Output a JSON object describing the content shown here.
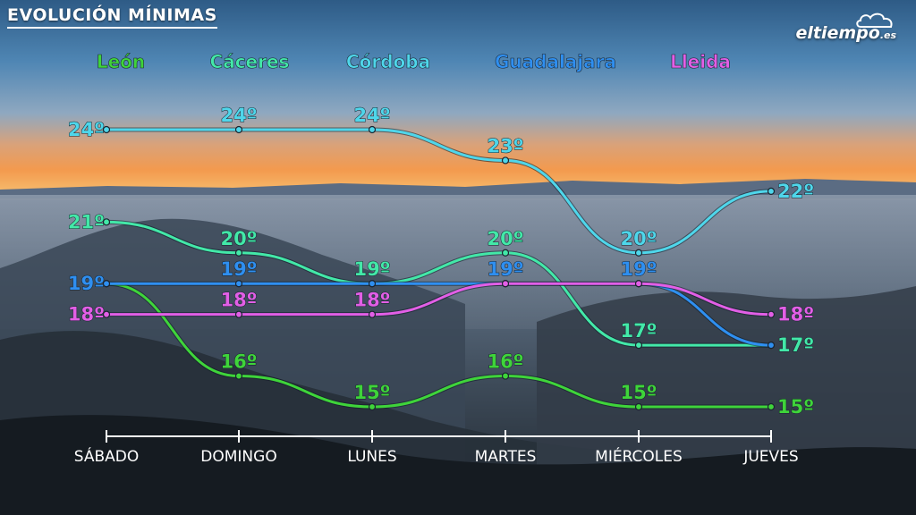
{
  "header": {
    "title": "EVOLUCIÓN MÍNIMAS"
  },
  "brand": {
    "name": "eltiempo",
    "tld": ".es"
  },
  "chart_data": {
    "type": "line",
    "title": "EVOLUCIÓN MÍNIMAS",
    "xlabel": "",
    "ylabel": "",
    "unit": "º",
    "categories": [
      "SÁBADO",
      "DOMINGO",
      "LUNES",
      "MARTES",
      "MIÉRCOLES",
      "JUEVES"
    ],
    "ylim": [
      15,
      24
    ],
    "grid": false,
    "legend_position": "top",
    "series": [
      {
        "name": "León",
        "color": "#3fd43a",
        "values": [
          19,
          16,
          15,
          16,
          15,
          15
        ]
      },
      {
        "name": "Cáceres",
        "color": "#43e8a8",
        "values": [
          21,
          20,
          19,
          20,
          17,
          17
        ]
      },
      {
        "name": "Córdoba",
        "color": "#4fd6ea",
        "values": [
          24,
          24,
          24,
          23,
          20,
          22
        ]
      },
      {
        "name": "Guadalajara",
        "color": "#2f8ff0",
        "values": [
          19,
          19,
          19,
          19,
          19,
          17
        ]
      },
      {
        "name": "Lleida",
        "color": "#e25fe6",
        "values": [
          18,
          18,
          18,
          19,
          19,
          18
        ]
      }
    ]
  }
}
